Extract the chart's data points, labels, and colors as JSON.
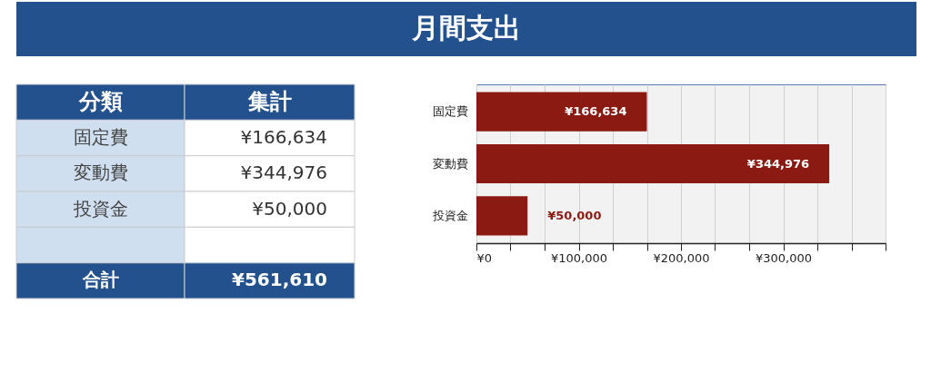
{
  "chart_data": [
    {
      "type": "other",
      "title": "月間支出",
      "annotations": [
        "分類",
        "集計",
        "固定費",
        "¥166,634",
        "変動費",
        "¥344,976",
        "投資金",
        "¥50,000",
        "合計",
        "¥561,610"
      ]
    },
    {
      "type": "bar",
      "orientation": "horizontal",
      "categories": [
        "固定費",
        "変動費",
        "投資金"
      ],
      "values": [
        166634,
        344976,
        50000
      ],
      "color": "#8b1a12",
      "value_labels": [
        "¥166,634",
        "¥344,976",
        "¥50,000"
      ],
      "xlim": [
        0,
        400000
      ],
      "xticks": [
        {
          "value": 0,
          "label": "¥0"
        },
        {
          "value": 33333.33,
          "label": null
        },
        {
          "value": 66666.67,
          "label": null
        },
        {
          "value": 100000,
          "label": "¥100,000"
        },
        {
          "value": 133333.33,
          "label": null
        },
        {
          "value": 166666.67,
          "label": null
        },
        {
          "value": 200000,
          "label": "¥200,000"
        },
        {
          "value": 233333.33,
          "label": null
        },
        {
          "value": 266666.67,
          "label": null
        },
        {
          "value": 300000,
          "label": "¥300,000"
        },
        {
          "value": 333333.33,
          "label": null
        },
        {
          "value": 366666.67,
          "label": null
        },
        {
          "value": 400000,
          "label": null
        }
      ],
      "grid": "x",
      "legend": false
    }
  ]
}
